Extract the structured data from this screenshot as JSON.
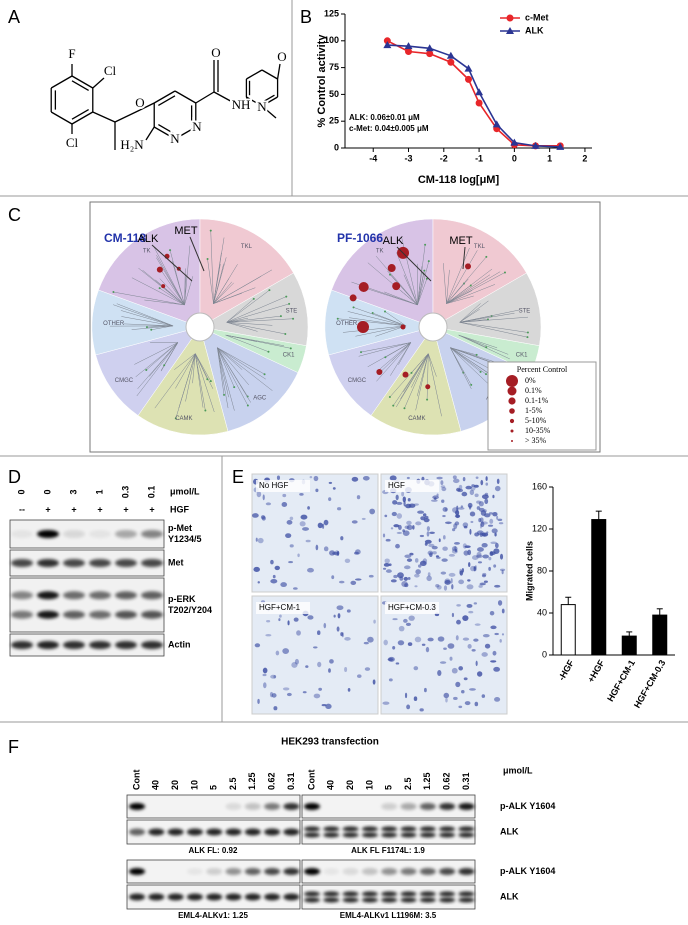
{
  "chart_data": [
    {
      "type": "line",
      "panel_label": "B",
      "x_label": "CM-118 log[μM]",
      "y_label": "% Control activity",
      "x": [
        -3.6,
        -3,
        -2.4,
        -1.8,
        -1.3,
        -1,
        -0.5,
        0,
        0.6,
        1.3
      ],
      "series": [
        {
          "name": "c-Met",
          "color": "#e8262a",
          "marker": "circle",
          "values": [
            100,
            90,
            88,
            80,
            64,
            42,
            18,
            3,
            2,
            2
          ]
        },
        {
          "name": "ALK",
          "color": "#2b3593",
          "marker": "triangle",
          "values": [
            96,
            95,
            93,
            86,
            74,
            52,
            22,
            5,
            2,
            1
          ]
        }
      ],
      "annotations": [
        "ALK: 0.06±0.01 μM",
        "c-Met: 0.04±0.005 μM"
      ],
      "xlim": [
        -4.8,
        2.2
      ],
      "xticks": [
        -4,
        -3,
        -2,
        -1,
        0,
        1,
        2
      ],
      "ylim": [
        0,
        125
      ],
      "yticks": [
        0,
        25,
        50,
        75,
        100,
        125
      ],
      "legend": "upper right"
    },
    {
      "type": "bar",
      "y_label": "Migrated cells",
      "categories": [
        "-HGF",
        "+HGF",
        "HGF+CM-1",
        "HGF+CM-0.3"
      ],
      "values": [
        48,
        129,
        18,
        38
      ],
      "errors": [
        7,
        8,
        4,
        6
      ],
      "colors": [
        "#ffffff",
        "#000000",
        "#000000",
        "#000000"
      ],
      "ylim": [
        0,
        160
      ],
      "yticks": [
        0,
        40,
        80,
        120,
        160
      ]
    }
  ],
  "panel_a": {
    "label": "A",
    "atoms": [
      "F",
      "Cl",
      "Cl",
      "O",
      "H₂N",
      "N",
      "N",
      "O",
      "NH",
      "O",
      "N"
    ]
  },
  "panel_c": {
    "label": "C",
    "trees": [
      {
        "title": "CM-118",
        "targets": [
          "ALK",
          "MET"
        ]
      },
      {
        "title": "PF-1066",
        "targets": [
          "ALK",
          "MET"
        ]
      }
    ],
    "families": [
      "TK",
      "TKL",
      "STE",
      "CK1",
      "AGC",
      "CAMK",
      "CMGC",
      "OTHER"
    ],
    "legend": {
      "title": "Percent Control",
      "items": [
        "0%",
        "0.1%",
        "0.1-1%",
        "1-5%",
        "5-10%",
        "10-35%",
        "> 35%"
      ]
    }
  },
  "panel_d": {
    "label": "D",
    "doses": [
      "0",
      "0",
      "3",
      "1",
      "0.3",
      "0.1"
    ],
    "dose_unit": "μmol/L",
    "hgf": [
      "--",
      "+",
      "+",
      "+",
      "+",
      "+"
    ],
    "hgf_label": "HGF",
    "rows": [
      [
        "p-Met",
        "Y1234/5"
      ],
      [
        "Met"
      ],
      [
        "p-ERK",
        "T202/Y204"
      ],
      [
        "Actin"
      ]
    ]
  },
  "panel_e": {
    "label": "E",
    "images": [
      "No HGF",
      "HGF",
      "HGF+CM-1",
      "HGF+CM-0.3"
    ]
  },
  "panel_f": {
    "label": "F",
    "title": "HEK293 transfection",
    "lanes": [
      "Cont",
      "40",
      "20",
      "10",
      "5",
      "2.5",
      "1.25",
      "0.62",
      "0.31"
    ],
    "unit": "μmol/L",
    "rows": [
      "p-ALK Y1604",
      "ALK"
    ],
    "blots": [
      "ALK FL: 0.92",
      "ALK FL F1174L: 1.9",
      "EML4-ALKv1: 1.25",
      "EML4-ALKv1 L1196M: 3.5"
    ]
  }
}
